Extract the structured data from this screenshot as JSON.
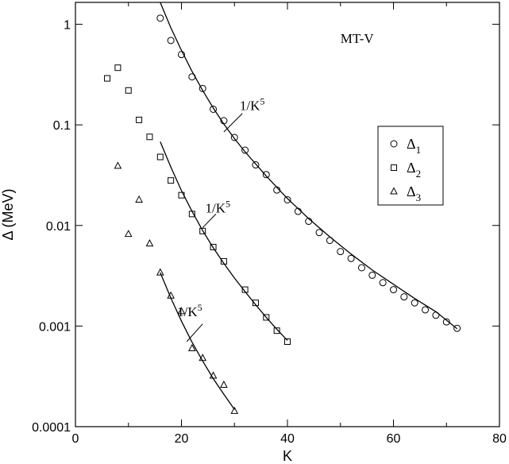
{
  "chart_data": {
    "type": "scatter",
    "xlabel": "K",
    "ylabel": "Δ (MeV)",
    "xlim": [
      0,
      80
    ],
    "ylim": [
      0.0001,
      2
    ],
    "yscale": "log",
    "grid": false,
    "legend_position": "right",
    "x_ticks": [
      "0",
      "20",
      "40",
      "60",
      "80"
    ],
    "y_ticks": [
      {
        "value": 1,
        "label": "1"
      },
      {
        "value": 0.1,
        "label": "0.1"
      },
      {
        "value": 0.01,
        "label": "0.01"
      },
      {
        "value": 0.001,
        "label": "0.001"
      },
      {
        "value": 0.0001,
        "label": "0.0001"
      }
    ],
    "annotations": [
      {
        "text": "MT-V",
        "x": 50,
        "y": 0.65
      },
      {
        "text": "1/K",
        "sup": "5",
        "x": 31,
        "y": 0.14,
        "lx": [
          28,
          31.5
        ],
        "ly": [
          0.085,
          0.13
        ]
      },
      {
        "text": "1/K",
        "sup": "5",
        "x": 24.5,
        "y": 0.0135,
        "lx": [
          24,
          26.5
        ],
        "ly": [
          0.0095,
          0.013
        ]
      },
      {
        "text": "1/K",
        "sup": "5",
        "x": 19.2,
        "y": 0.00125,
        "lx": [
          21,
          24
        ],
        "ly": [
          0.0007,
          0.00105
        ]
      }
    ],
    "series": [
      {
        "name": "Δ",
        "name_sub": "1",
        "marker": "circle",
        "points": [
          [
            16,
            1.15
          ],
          [
            18,
            0.69
          ],
          [
            20,
            0.5
          ],
          [
            22,
            0.3
          ],
          [
            24,
            0.23
          ],
          [
            26,
            0.143
          ],
          [
            28,
            0.11
          ],
          [
            30,
            0.075
          ],
          [
            32,
            0.056
          ],
          [
            34,
            0.04
          ],
          [
            36,
            0.032
          ],
          [
            38,
            0.0225
          ],
          [
            40,
            0.018
          ],
          [
            42,
            0.0138
          ],
          [
            44,
            0.011
          ],
          [
            46,
            0.0085
          ],
          [
            48,
            0.0071
          ],
          [
            50,
            0.0055
          ],
          [
            52,
            0.0047
          ],
          [
            54,
            0.0038
          ],
          [
            56,
            0.0032
          ],
          [
            58,
            0.0027
          ],
          [
            60,
            0.0023
          ],
          [
            62,
            0.00195
          ],
          [
            64,
            0.0017
          ],
          [
            66,
            0.00145
          ],
          [
            68,
            0.00128
          ],
          [
            70,
            0.0011
          ],
          [
            72,
            0.00095
          ]
        ],
        "fit_line": [
          [
            16,
            1.65
          ],
          [
            18,
            0.92
          ],
          [
            20,
            0.55
          ],
          [
            22,
            0.34
          ],
          [
            24,
            0.22
          ],
          [
            26,
            0.147
          ],
          [
            28,
            0.102
          ],
          [
            30,
            0.073
          ],
          [
            32,
            0.054
          ],
          [
            36,
            0.031
          ],
          [
            40,
            0.0185
          ],
          [
            44,
            0.0117
          ],
          [
            48,
            0.0077
          ],
          [
            52,
            0.0052
          ],
          [
            56,
            0.0036
          ],
          [
            60,
            0.0026
          ],
          [
            64,
            0.00188
          ],
          [
            68,
            0.00139
          ],
          [
            72,
            0.00094
          ]
        ]
      },
      {
        "name": "Δ",
        "name_sub": "2",
        "marker": "square",
        "points": [
          [
            6,
            0.29
          ],
          [
            8,
            0.37
          ],
          [
            10,
            0.22
          ],
          [
            12,
            0.112
          ],
          [
            14,
            0.076
          ],
          [
            16,
            0.048
          ],
          [
            18,
            0.028
          ],
          [
            20,
            0.02
          ],
          [
            22,
            0.013
          ],
          [
            24,
            0.0088
          ],
          [
            26,
            0.0061
          ],
          [
            28,
            0.0044
          ],
          [
            32,
            0.0023
          ],
          [
            34,
            0.0017
          ],
          [
            36,
            0.00122
          ],
          [
            38,
            0.0009
          ],
          [
            40,
            0.0007
          ]
        ],
        "fit_line": [
          [
            16,
            0.068
          ],
          [
            18,
            0.038
          ],
          [
            20,
            0.0222
          ],
          [
            22,
            0.0138
          ],
          [
            24,
            0.0089
          ],
          [
            26,
            0.006
          ],
          [
            28,
            0.0042
          ],
          [
            30,
            0.003
          ],
          [
            32,
            0.0022
          ],
          [
            34,
            0.00163
          ],
          [
            36,
            0.00122
          ],
          [
            38,
            0.00093
          ],
          [
            40,
            0.00072
          ]
        ]
      },
      {
        "name": "Δ",
        "name_sub": "3",
        "marker": "triangle",
        "points": [
          [
            8,
            0.039
          ],
          [
            10,
            0.0082
          ],
          [
            12,
            0.018
          ],
          [
            14,
            0.0066
          ],
          [
            16,
            0.0034
          ],
          [
            18,
            0.002
          ],
          [
            20,
            0.0014
          ],
          [
            22,
            0.0006
          ],
          [
            24,
            0.00048
          ],
          [
            26,
            0.00032
          ],
          [
            28,
            0.00026
          ],
          [
            30,
            0.000143
          ]
        ],
        "fit_line": [
          [
            16,
            0.0034
          ],
          [
            18,
            0.0019
          ],
          [
            20,
            0.00112
          ],
          [
            22,
            0.00069
          ],
          [
            24,
            0.00045
          ],
          [
            26,
            0.0003
          ],
          [
            28,
            0.00021
          ],
          [
            30,
            0.000148
          ]
        ]
      }
    ]
  }
}
